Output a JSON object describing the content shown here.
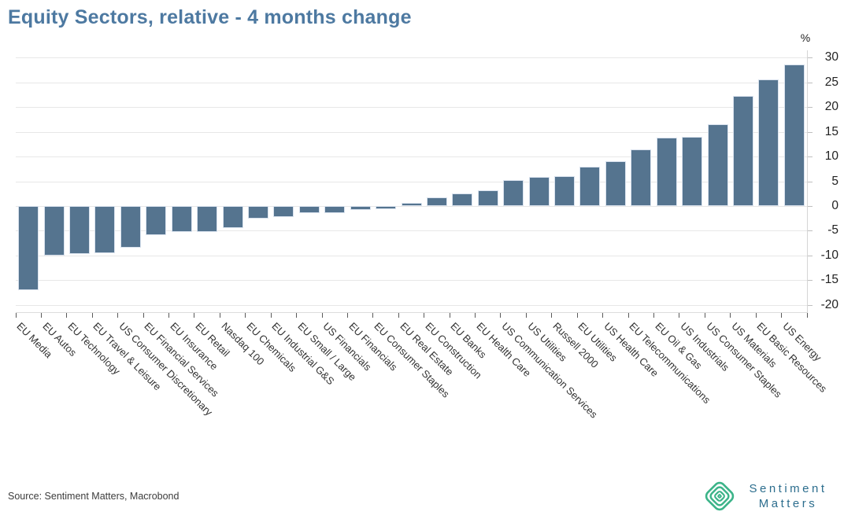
{
  "header": {
    "title": "Equity Sectors, relative - 4 months change"
  },
  "axis": {
    "unit_label": "%"
  },
  "chart_data": {
    "type": "bar",
    "title": "Equity Sectors, relative - 4 months change",
    "categories": [
      "EU Media",
      "EU Autos",
      "EU Technology",
      "EU Travel & Leisure",
      "US Consumer Discretionary",
      "EU Financial Services",
      "EU Insurance",
      "EU Retail",
      "Nasdaq 100",
      "EU Chemicals",
      "EU Industrial G&S",
      "EU Small / Large",
      "US Financials",
      "EU Financials",
      "EU Consumer Staples",
      "EU Real Estate",
      "EU Construction",
      "EU Banks",
      "EU Health Care",
      "US Communication Services",
      "US Utilities",
      "Russell 2000",
      "EU Utilities",
      "US Health Care",
      "EU Telecommunications",
      "EU Oil & Gas",
      "US Industrials",
      "US Consumer Staples",
      "US Materials",
      "EU Basic Resources",
      "US Energy"
    ],
    "values": [
      -17.0,
      -10.0,
      -9.8,
      -9.6,
      -8.4,
      -5.9,
      -5.3,
      -5.2,
      -4.4,
      -2.6,
      -2.2,
      -1.5,
      -1.4,
      -0.8,
      -0.6,
      0.6,
      1.8,
      2.6,
      3.2,
      5.3,
      5.8,
      6.1,
      8.0,
      9.0,
      11.4,
      13.9,
      14.0,
      16.5,
      22.2,
      25.6,
      28.7
    ],
    "xlabel": "",
    "ylabel": "%",
    "ylim": [
      -21.5,
      31.5
    ],
    "yticks": [
      30,
      25,
      20,
      15,
      10,
      5,
      0,
      -5,
      -10,
      -15,
      -20
    ],
    "grid": true,
    "legend": false,
    "bar_color": "#55748f"
  },
  "footer": {
    "source": "Source: Sentiment Matters, Macrobond"
  },
  "logo": {
    "icon": "concentric-diamond-icon",
    "icon_color": "#3cb489",
    "text_color": "#2d6e8e",
    "line1": "Sentiment",
    "line2": "Matters"
  }
}
